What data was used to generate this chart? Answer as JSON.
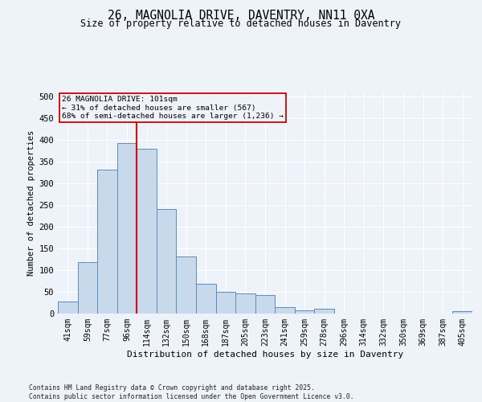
{
  "title": "26, MAGNOLIA DRIVE, DAVENTRY, NN11 0XA",
  "subtitle": "Size of property relative to detached houses in Daventry",
  "xlabel": "Distribution of detached houses by size in Daventry",
  "ylabel": "Number of detached properties",
  "bar_color": "#c9d9ec",
  "bar_edge_color": "#5b8db8",
  "categories": [
    "41sqm",
    "59sqm",
    "77sqm",
    "96sqm",
    "114sqm",
    "132sqm",
    "150sqm",
    "168sqm",
    "187sqm",
    "205sqm",
    "223sqm",
    "241sqm",
    "259sqm",
    "278sqm",
    "296sqm",
    "314sqm",
    "332sqm",
    "350sqm",
    "369sqm",
    "387sqm",
    "405sqm"
  ],
  "values": [
    27,
    118,
    332,
    393,
    381,
    241,
    131,
    68,
    50,
    47,
    42,
    15,
    8,
    11,
    0,
    0,
    0,
    0,
    0,
    0,
    6
  ],
  "vline_x_idx": 3,
  "vline_color": "#cc0000",
  "ylim": [
    0,
    510
  ],
  "yticks": [
    0,
    50,
    100,
    150,
    200,
    250,
    300,
    350,
    400,
    450,
    500
  ],
  "annotation_title": "26 MAGNOLIA DRIVE: 101sqm",
  "annotation_line2": "← 31% of detached houses are smaller (567)",
  "annotation_line3": "68% of semi-detached houses are larger (1,236) →",
  "annotation_box_color": "#cc0000",
  "footer_line1": "Contains HM Land Registry data © Crown copyright and database right 2025.",
  "footer_line2": "Contains public sector information licensed under the Open Government Licence v3.0.",
  "background_color": "#eef2f9",
  "grid_color": "#ffffff"
}
